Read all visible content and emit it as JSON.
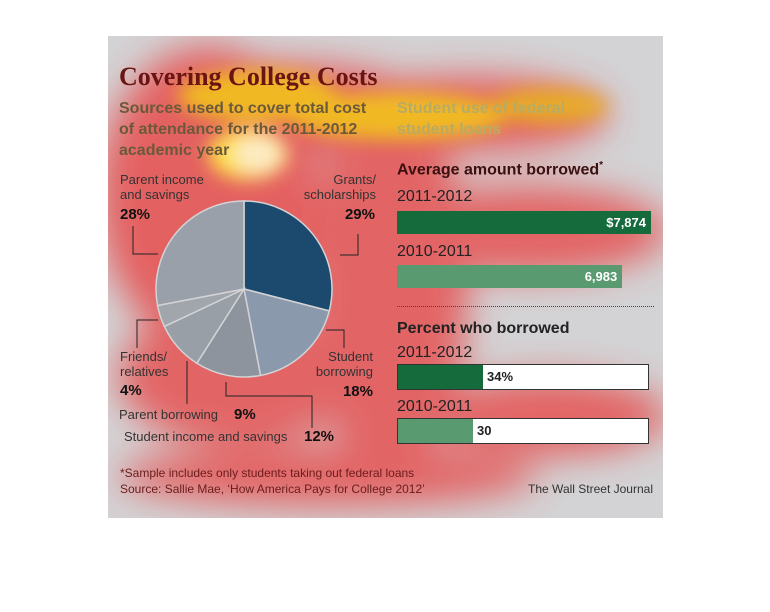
{
  "header": {
    "title": "Covering College Costs",
    "subtitle_left": "Sources used to cover total cost of attendance for the 2011-2012 academic year",
    "subtitle_right": "Student use of federal student loans"
  },
  "sections": {
    "average_title": "Average amount borrowed",
    "average_mark": "*",
    "percent_title": "Percent who borrowed"
  },
  "footer": {
    "footnote": "*Sample includes only students taking out federal loans",
    "source": "Source: Sallie Mae, ‘How America Pays for College 2012’",
    "credit": "The Wall Street Journal"
  },
  "colors": {
    "grants": "#1c4a6e",
    "student_borrowing": "#8a99ac",
    "student_income": "#8d949d",
    "parent_borrowing": "#999fa6",
    "friends": "#a1a6ad",
    "parent_income": "#9aa0a9",
    "bar_current": "#166b3c",
    "bar_previous": "#5a9a70"
  },
  "chart_data": [
    {
      "type": "pie",
      "title": "Sources used to cover total cost of attendance for the 2011-2012 academic year",
      "slices": [
        {
          "key": "grants",
          "label": "Grants/ scholarships",
          "label_line1": "Grants/",
          "label_line2": "scholarships",
          "value": 29,
          "pct_label": "29%"
        },
        {
          "key": "student_borrowing",
          "label": "Student borrowing",
          "label_line1": "Student",
          "label_line2": "borrowing",
          "value": 18,
          "pct_label": "18%"
        },
        {
          "key": "student_income",
          "label": "Student income and savings",
          "value": 12,
          "pct_label": "12%"
        },
        {
          "key": "parent_borrowing",
          "label": "Parent borrowing",
          "value": 9,
          "pct_label": "9%"
        },
        {
          "key": "friends",
          "label": "Friends/ relatives",
          "label_line1": "Friends/",
          "label_line2": "relatives",
          "value": 4,
          "pct_label": "4%"
        },
        {
          "key": "parent_income",
          "label": "Parent income and savings",
          "label_line1": "Parent income",
          "label_line2": "and savings",
          "value": 28,
          "pct_label": "28%"
        }
      ]
    },
    {
      "type": "bar",
      "title": "Average amount borrowed",
      "categories": [
        "2011-2012",
        "2010-2011"
      ],
      "values": [
        7874,
        6983
      ],
      "value_labels": [
        "$7,874",
        "6,983"
      ],
      "xlim": [
        0,
        7874
      ]
    },
    {
      "type": "bar",
      "title": "Percent who borrowed",
      "categories": [
        "2011-2012",
        "2010-2011"
      ],
      "values": [
        34,
        30
      ],
      "value_labels": [
        "34%",
        "30"
      ],
      "xlim": [
        0,
        100
      ]
    }
  ]
}
